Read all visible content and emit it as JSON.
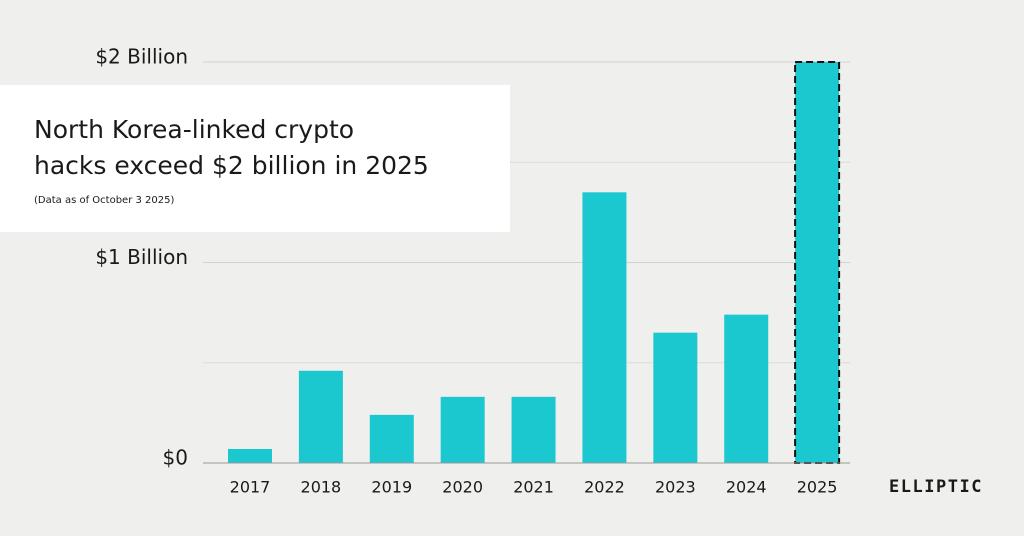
{
  "chart_data": {
    "type": "bar",
    "title": [
      "North Korea-linked crypto",
      "hacks exceed $2 billion in 2025"
    ],
    "subtitle": "(Data as of October 3 2025)",
    "categories": [
      "2017",
      "2018",
      "2019",
      "2020",
      "2021",
      "2022",
      "2023",
      "2024",
      "2025"
    ],
    "values": [
      70000000,
      460000000,
      240000000,
      330000000,
      330000000,
      1350000000,
      650000000,
      740000000,
      2000000000
    ],
    "dashed_outline": [
      false,
      false,
      false,
      false,
      false,
      false,
      false,
      false,
      true
    ],
    "color": "#1bc8cf",
    "ylim": [
      0,
      2000000000
    ],
    "yticks": [
      {
        "value": 0,
        "label": "$0"
      },
      {
        "value": 1000000000,
        "label": "$1 Billion"
      },
      {
        "value": 2000000000,
        "label": "$2 Billion"
      }
    ],
    "minor_yticks": [
      500000000,
      1500000000
    ],
    "grid": true
  },
  "logo": "ELLIPTIC"
}
